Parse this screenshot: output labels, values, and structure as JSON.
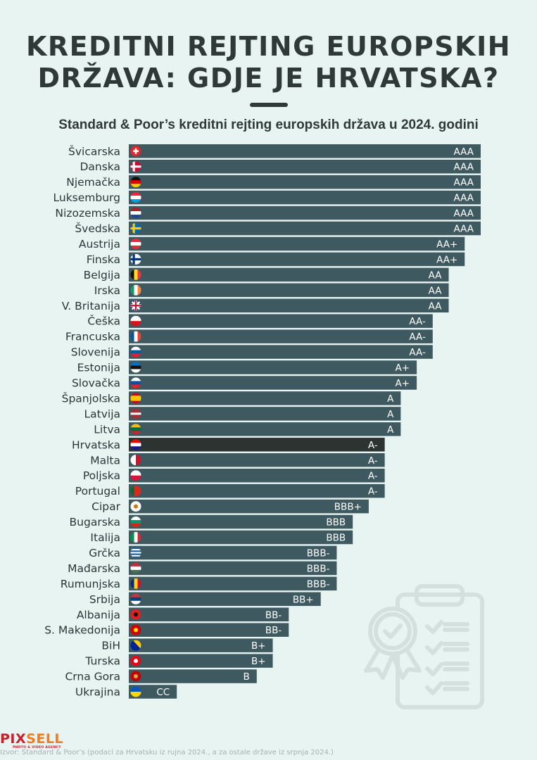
{
  "header": {
    "title_line1": "KREDITNI REJTING EUROPSKIH",
    "title_line2": "DRŽAVA: GDJE JE HRVATSKA?",
    "subtitle": "Standard & Poor’s kreditni rejting europskih država u 2024. godini"
  },
  "footer": {
    "source": "Izvor: Standard & Poor’s (podaci za Hrvatsku iz rujna 2024., a za ostale države iz srpnja 2024.)",
    "logo_part1": "PIX",
    "logo_part2": "SELL",
    "logo_tagline": "PHOTO & VIDEO AGENCY"
  },
  "decoration": {
    "icon": "clipboard-checklist-award-icon"
  },
  "colors": {
    "background": "#e7f4f2",
    "bar": "#3e5a60",
    "highlight_bar": "#2c3331",
    "text": "#2b3636",
    "value_text": "#ffffff"
  },
  "chart_data": {
    "type": "bar",
    "orientation": "horizontal",
    "title": "Standard & Poor’s kreditni rejting europskih država u 2024. godini",
    "xlabel": "",
    "ylabel": "",
    "grid": false,
    "legend": "none",
    "rating_scale": {
      "AAA": 22,
      "AA+": 21,
      "AA": 20,
      "AA-": 19,
      "A+": 18,
      "A": 17,
      "A-": 16,
      "BBB+": 15,
      "BBB": 14,
      "BBB-": 13,
      "BB+": 12,
      "BB": 11,
      "BB-": 10,
      "B+": 9,
      "B": 8,
      "B-": 7,
      "CCC+": 6,
      "CCC": 5,
      "CCC-": 4,
      "CC": 3
    },
    "xlim": [
      0,
      22
    ],
    "highlight": "Hrvatska",
    "categories": [
      "Švicarska",
      "Danska",
      "Njemačka",
      "Luksemburg",
      "Nizozemska",
      "Švedska",
      "Austrija",
      "Finska",
      "Belgija",
      "Irska",
      "V. Britanija",
      "Češka",
      "Francuska",
      "Slovenija",
      "Estonija",
      "Slovačka",
      "Španjolska",
      "Latvija",
      "Litva",
      "Hrvatska",
      "Malta",
      "Poljska",
      "Portugal",
      "Cipar",
      "Bugarska",
      "Italija",
      "Grčka",
      "Mađarska",
      "Rumunjska",
      "Srbija",
      "Albanija",
      "S. Makedonija",
      "BiH",
      "Turska",
      "Crna Gora",
      "Ukrajina"
    ],
    "ratings": [
      "AAA",
      "AAA",
      "AAA",
      "AAA",
      "AAA",
      "AAA",
      "AA+",
      "AA+",
      "AA",
      "AA",
      "AA",
      "AA-",
      "AA-",
      "AA-",
      "A+",
      "A+",
      "A",
      "A",
      "A",
      "A-",
      "A-",
      "A-",
      "A-",
      "BBB+",
      "BBB",
      "BBB",
      "BBB-",
      "BBB-",
      "BBB-",
      "BB+",
      "BB-",
      "BB-",
      "B+",
      "B+",
      "B",
      "CC"
    ],
    "flags": [
      "ch",
      "dk",
      "de",
      "lu",
      "nl",
      "se",
      "at",
      "fi",
      "be",
      "ie",
      "gb",
      "cz",
      "fr",
      "si",
      "ee",
      "sk",
      "es",
      "lv",
      "lt",
      "hr",
      "mt",
      "pl",
      "pt",
      "cy",
      "bg",
      "it",
      "gr",
      "hu",
      "ro",
      "rs",
      "al",
      "mk",
      "ba",
      "tr",
      "me",
      "ua"
    ]
  }
}
